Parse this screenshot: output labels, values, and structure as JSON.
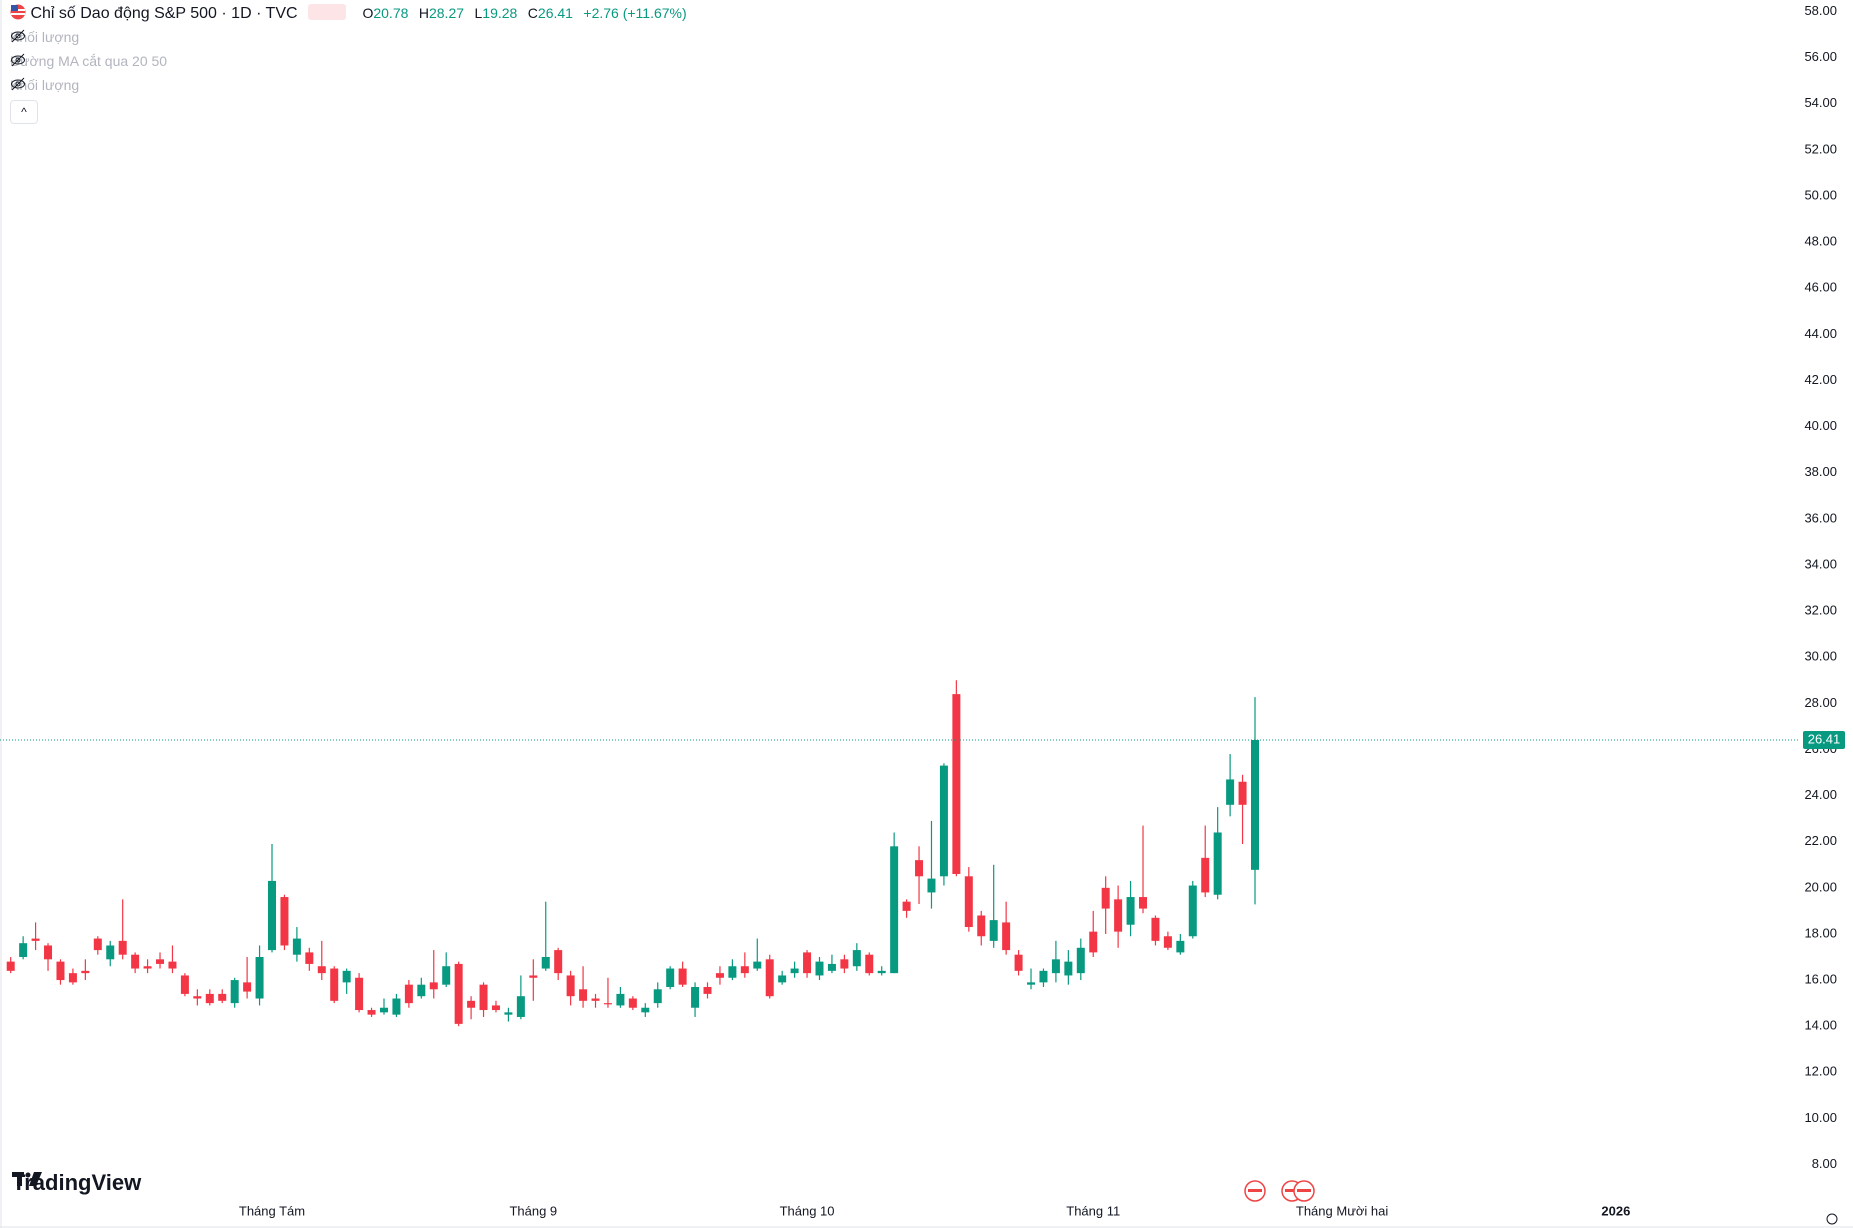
{
  "chart_data": {
    "type": "candlestick",
    "title": "Chỉ số Dao động S&P 500 · 1D · TVC",
    "header": {
      "o_label": "O",
      "open": 20.78,
      "h_label": "H",
      "high": 28.27,
      "l_label": "L",
      "low": 19.28,
      "c_label": "C",
      "close": 26.41,
      "change": "+2.76 (+11.67%)"
    },
    "indicators": [
      "Khối lượng",
      "Đường MA cắt qua 20 50",
      "Khối lượng"
    ],
    "brand": "TradingView",
    "up_color": "#089981",
    "down_color": "#f23645",
    "open": [
      16.8,
      17.0,
      17.8,
      17.5,
      16.8,
      16.3,
      16.4,
      17.8,
      16.9,
      17.7,
      17.1,
      16.6,
      16.9,
      16.8,
      16.2,
      15.3,
      15.4,
      15.4,
      15.0,
      15.9,
      15.2,
      17.3,
      19.6,
      17.1,
      17.2,
      16.6,
      16.5,
      15.9,
      16.1,
      14.7,
      14.6,
      14.5,
      15.8,
      15.3,
      15.9,
      15.8,
      16.7,
      15.1,
      15.8,
      14.9,
      14.5,
      14.4,
      16.2,
      16.5,
      17.3,
      16.2,
      15.6,
      15.2,
      15.0,
      14.9,
      15.2,
      14.6,
      15.0,
      15.7,
      16.5,
      14.8,
      15.7,
      16.3,
      16.1,
      16.6,
      16.5,
      16.9,
      15.9,
      16.3,
      17.2,
      16.2,
      16.4,
      16.9,
      16.6,
      17.1,
      16.3,
      16.3,
      19.4,
      21.2,
      19.8,
      20.5,
      28.4,
      20.5,
      18.8,
      17.7,
      18.5,
      17.1,
      15.8,
      15.9,
      16.3,
      16.2,
      16.3,
      18.1,
      20.0,
      19.5,
      18.4,
      19.6,
      18.7,
      17.9,
      17.2,
      17.9,
      21.3,
      19.7,
      23.6,
      24.6,
      20.78
    ],
    "high": [
      17.0,
      17.9,
      18.5,
      17.6,
      16.9,
      16.5,
      16.9,
      17.9,
      17.7,
      19.5,
      17.2,
      16.9,
      17.2,
      17.5,
      16.3,
      15.6,
      15.6,
      15.6,
      16.1,
      17.0,
      17.5,
      21.9,
      19.7,
      18.3,
      17.4,
      17.7,
      16.6,
      16.5,
      16.3,
      14.8,
      15.2,
      15.4,
      16.0,
      16.1,
      17.3,
      17.2,
      16.8,
      15.3,
      15.9,
      15.1,
      14.8,
      16.2,
      16.9,
      19.4,
      17.4,
      16.4,
      16.6,
      15.4,
      16.1,
      15.7,
      15.3,
      15.0,
      15.9,
      16.6,
      16.8,
      15.9,
      15.9,
      16.6,
      16.9,
      17.2,
      17.8,
      17.1,
      16.4,
      16.8,
      17.3,
      17.0,
      17.1,
      17.1,
      17.6,
      17.2,
      16.6,
      22.4,
      19.5,
      21.8,
      22.9,
      25.4,
      29.0,
      20.9,
      19.0,
      21.0,
      19.4,
      17.3,
      16.5,
      16.5,
      17.7,
      17.3,
      17.8,
      19.0,
      20.5,
      20.1,
      20.3,
      22.7,
      18.8,
      18.1,
      18.0,
      20.3,
      22.7,
      23.5,
      25.8,
      24.9,
      28.27
    ],
    "low": [
      16.3,
      16.9,
      17.3,
      16.4,
      15.8,
      15.8,
      16.0,
      17.1,
      16.6,
      16.9,
      16.3,
      16.3,
      16.5,
      16.3,
      15.3,
      14.9,
      14.9,
      15.0,
      14.8,
      15.2,
      14.9,
      17.2,
      17.3,
      16.8,
      16.4,
      16.0,
      15.0,
      15.4,
      14.6,
      14.4,
      14.5,
      14.4,
      14.8,
      15.2,
      15.2,
      15.7,
      14.0,
      14.3,
      14.4,
      14.6,
      14.2,
      14.3,
      15.1,
      16.4,
      16.0,
      14.9,
      14.8,
      14.8,
      14.8,
      14.8,
      14.7,
      14.4,
      14.8,
      15.6,
      15.7,
      14.4,
      15.2,
      15.8,
      16.0,
      16.1,
      16.4,
      15.2,
      15.8,
      16.1,
      16.1,
      16.0,
      16.3,
      16.3,
      16.4,
      16.2,
      16.2,
      16.3,
      18.7,
      19.3,
      19.1,
      20.1,
      20.5,
      18.1,
      17.5,
      17.4,
      17.1,
      16.2,
      15.6,
      15.7,
      15.9,
      15.8,
      16.0,
      17.0,
      18.0,
      17.4,
      17.9,
      18.9,
      17.5,
      17.3,
      17.1,
      17.8,
      19.6,
      19.5,
      23.1,
      21.9,
      19.28
    ],
    "close": [
      16.4,
      17.6,
      17.7,
      16.9,
      16.0,
      15.9,
      16.3,
      17.3,
      17.5,
      17.1,
      16.5,
      16.5,
      16.7,
      16.5,
      15.4,
      15.2,
      15.0,
      15.1,
      16.0,
      15.5,
      17.0,
      20.3,
      17.5,
      17.8,
      16.7,
      16.3,
      15.1,
      16.4,
      14.7,
      14.5,
      14.8,
      15.2,
      15.0,
      15.8,
      15.6,
      16.6,
      14.1,
      14.8,
      14.7,
      14.7,
      14.6,
      15.3,
      16.1,
      17.0,
      16.3,
      15.3,
      15.1,
      15.1,
      14.95,
      15.4,
      14.8,
      14.8,
      15.6,
      16.5,
      15.8,
      15.7,
      15.4,
      16.1,
      16.6,
      16.3,
      16.8,
      15.3,
      16.2,
      16.5,
      16.3,
      16.8,
      16.7,
      16.5,
      17.3,
      16.3,
      16.4,
      21.8,
      19.0,
      20.5,
      20.4,
      25.3,
      20.6,
      18.3,
      17.9,
      18.6,
      17.3,
      16.4,
      15.9,
      16.4,
      16.9,
      16.8,
      17.4,
      17.2,
      19.1,
      18.1,
      19.6,
      19.1,
      17.7,
      17.4,
      17.7,
      20.1,
      19.8,
      22.4,
      24.7,
      23.6,
      26.41
    ],
    "ylim": [
      7.33,
      58.5
    ],
    "yticks": [
      {
        "value": 8,
        "label": "8.00"
      },
      {
        "value": 10,
        "label": "10.00"
      },
      {
        "value": 12,
        "label": "12.00"
      },
      {
        "value": 14,
        "label": "14.00"
      },
      {
        "value": 16,
        "label": "16.00"
      },
      {
        "value": 18,
        "label": "18.00"
      },
      {
        "value": 20,
        "label": "20.00"
      },
      {
        "value": 22,
        "label": "22.00"
      },
      {
        "value": 24,
        "label": "24.00"
      },
      {
        "value": 26,
        "label": "26.00"
      },
      {
        "value": 28,
        "label": "28.00"
      },
      {
        "value": 30,
        "label": "30.00"
      },
      {
        "value": 32,
        "label": "32.00"
      },
      {
        "value": 34,
        "label": "34.00"
      },
      {
        "value": 36,
        "label": "36.00"
      },
      {
        "value": 38,
        "label": "38.00"
      },
      {
        "value": 40,
        "label": "40.00"
      },
      {
        "value": 42,
        "label": "42.00"
      },
      {
        "value": 44,
        "label": "44.00"
      },
      {
        "value": 46,
        "label": "46.00"
      },
      {
        "value": 48,
        "label": "48.00"
      },
      {
        "value": 50,
        "label": "50.00"
      },
      {
        "value": 52,
        "label": "52.00"
      },
      {
        "value": 54,
        "label": "54.00"
      },
      {
        "value": 56,
        "label": "56.00"
      },
      {
        "value": 58,
        "label": "58.00"
      }
    ],
    "xlim": [
      -0.86,
      143.8
    ],
    "xticks": [
      {
        "value": 21,
        "label": "Tháng Tám"
      },
      {
        "value": 42,
        "label": "Tháng 9"
      },
      {
        "value": 64,
        "label": "Tháng 10"
      },
      {
        "value": 87,
        "label": "Tháng 11"
      },
      {
        "value": 107,
        "label": "Tháng Mười hai"
      },
      {
        "value": 129,
        "label": "2026"
      }
    ]
  }
}
